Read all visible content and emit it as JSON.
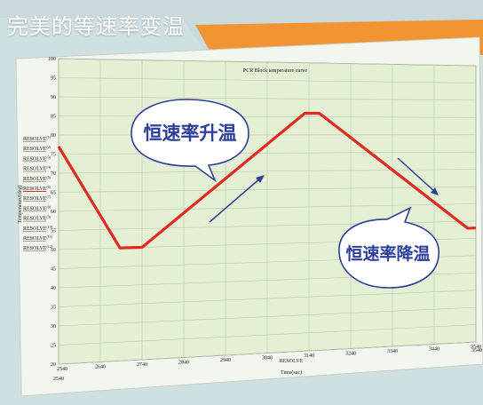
{
  "header": {
    "title": "完美的等速率变温",
    "banner_color": "#f29433"
  },
  "chart_data": {
    "type": "line",
    "title": "PCR Block temperature curve",
    "xlabel": "Time(sec)",
    "ylabel": "Temperature(deg)",
    "xlim": [
      2540,
      3540
    ],
    "ylim": [
      20,
      100
    ],
    "x_ticks": [
      "2540",
      "2640",
      "2740",
      "2840",
      "2940",
      "3040",
      "3140",
      "3240",
      "3340",
      "3440",
      "3540"
    ],
    "y_ticks": [
      "20",
      "25",
      "30",
      "35",
      "40",
      "45",
      "50",
      "55",
      "60",
      "65",
      "70",
      "75",
      "80",
      "85",
      "90",
      "95",
      "100"
    ],
    "x_extra_labels": [
      "2540",
      "3540"
    ],
    "x_mid_label": "RESOLVE",
    "series": [
      {
        "color": "#e02a22",
        "x": [
          2540,
          2687,
          2740,
          3130,
          3165,
          3520,
          3540
        ],
        "y": [
          77,
          50,
          50,
          86,
          86,
          53,
          53
        ]
      }
    ],
    "legend": {
      "placement": "left",
      "items": [
        {
          "name": "RESOLVE",
          "sup": "(1)"
        },
        {
          "name": "RESOLVE",
          "sup": "(2)"
        },
        {
          "name": "RESOLVE",
          "sup": "(3)"
        },
        {
          "name": "RESOLVE",
          "sup": "(4)"
        },
        {
          "name": "RESOLVE",
          "sup": "(5)"
        },
        {
          "name": "RESOLVE",
          "sup": "(6)"
        },
        {
          "name": "RESOLVE",
          "sup": "(7)"
        },
        {
          "name": "RESOLVE",
          "sup": "(8)"
        },
        {
          "name": "RESOLVE",
          "sup": "(9)"
        },
        {
          "name": "RESOLVE",
          "sup": "(10)"
        },
        {
          "name": "RESOLVE",
          "sup": "(11)"
        },
        {
          "name": "RESOLVE",
          "sup": "(12)"
        }
      ]
    },
    "grid": true,
    "annotations": [
      {
        "text": "恒速率升温",
        "kind": "speech-bubble"
      },
      {
        "text": "恒速率降温",
        "kind": "speech-bubble"
      }
    ],
    "plot_background": "#e4efd4",
    "grid_color": "#b6cab0"
  }
}
